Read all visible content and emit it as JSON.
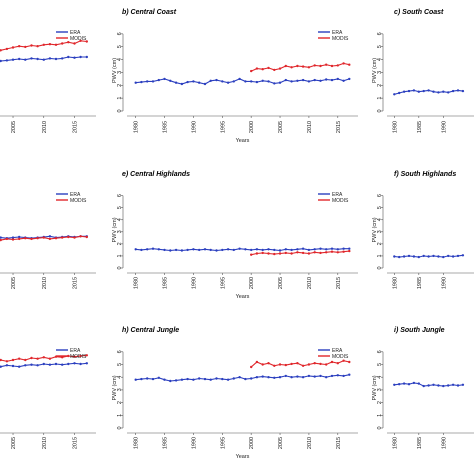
{
  "colors": {
    "era": "#2b3fbf",
    "modis": "#e0262b",
    "axis": "#555555"
  },
  "chart_data": [
    {
      "type": "line",
      "title": "",
      "xlabel": "",
      "ylabel": "",
      "x": [
        2000,
        2001,
        2002,
        2003,
        2004,
        2005,
        2006,
        2007,
        2008,
        2009,
        2010,
        2011,
        2012,
        2013,
        2014,
        2015,
        2016,
        2017
      ],
      "xticks": [
        "2005",
        "2010",
        "2015"
      ],
      "ylim": [
        0,
        6
      ],
      "legend": "top-right",
      "series": [
        {
          "name": "ERA",
          "key": "era",
          "values": [
            3.9,
            3.85,
            3.8,
            3.7,
            3.75,
            3.8,
            3.85,
            3.8,
            3.9,
            3.85,
            3.8,
            3.9,
            3.85,
            3.9,
            4.0,
            3.95,
            4.0,
            4.0
          ]
        },
        {
          "name": "MODIS",
          "key": "modis",
          "values": [
            4.7,
            4.6,
            4.55,
            4.5,
            4.6,
            4.7,
            4.8,
            4.75,
            4.85,
            4.8,
            4.9,
            4.95,
            4.9,
            5.0,
            5.1,
            5.0,
            5.2,
            5.15
          ]
        }
      ]
    },
    {
      "type": "line",
      "title": "b) Central Coast",
      "xlabel": "Years",
      "ylabel": "PWV (cm)",
      "x": [
        1980,
        1981,
        1982,
        1983,
        1984,
        1985,
        1986,
        1987,
        1988,
        1989,
        1990,
        1991,
        1992,
        1993,
        1994,
        1995,
        1996,
        1997,
        1998,
        1999,
        2000,
        2001,
        2002,
        2003,
        2004,
        2005,
        2006,
        2007,
        2008,
        2009,
        2010,
        2011,
        2012,
        2013,
        2014,
        2015,
        2016,
        2017
      ],
      "xticks": [
        "1980",
        "1985",
        "1990",
        "1995",
        "2000",
        "2005",
        "2010",
        "2015"
      ],
      "yticks": [
        "0",
        "1",
        "2",
        "3",
        "4",
        "5",
        "6"
      ],
      "ylim": [
        0,
        6.3
      ],
      "xlim": [
        1978.5,
        2018.5
      ],
      "legend": "top-right",
      "series": [
        {
          "name": "ERA",
          "key": "era",
          "values": [
            2.2,
            2.25,
            2.3,
            2.3,
            2.4,
            2.5,
            2.35,
            2.2,
            2.1,
            2.25,
            2.3,
            2.2,
            2.1,
            2.35,
            2.4,
            2.3,
            2.2,
            2.3,
            2.5,
            2.3,
            2.3,
            2.25,
            2.35,
            2.3,
            2.15,
            2.2,
            2.4,
            2.3,
            2.35,
            2.4,
            2.3,
            2.4,
            2.35,
            2.45,
            2.4,
            2.5,
            2.35,
            2.5
          ]
        },
        {
          "name": "MODIS",
          "x": [
            2000,
            2001,
            2002,
            2003,
            2004,
            2005,
            2006,
            2007,
            2008,
            2009,
            2010,
            2011,
            2012,
            2013,
            2014,
            2015,
            2016,
            2017
          ],
          "key": "modis",
          "values": [
            3.1,
            3.3,
            3.25,
            3.35,
            3.2,
            3.3,
            3.5,
            3.4,
            3.5,
            3.45,
            3.4,
            3.55,
            3.5,
            3.6,
            3.5,
            3.55,
            3.7,
            3.6
          ]
        }
      ]
    },
    {
      "type": "line",
      "title": "c) South Coast",
      "xlabel": "",
      "ylabel": "PWV (cm)",
      "x": [
        1980,
        1981,
        1982,
        1983,
        1984,
        1985,
        1986,
        1987,
        1988,
        1989,
        1990,
        1991,
        1992,
        1993,
        1994
      ],
      "xticks": [
        "1980",
        "1985",
        "1990"
      ],
      "yticks": [
        "0",
        "1",
        "2",
        "3",
        "4",
        "5",
        "6"
      ],
      "ylim": [
        0,
        6.3
      ],
      "series": [
        {
          "name": "ERA",
          "key": "era",
          "values": [
            1.3,
            1.4,
            1.5,
            1.55,
            1.6,
            1.5,
            1.55,
            1.6,
            1.5,
            1.45,
            1.5,
            1.45,
            1.55,
            1.6,
            1.55
          ]
        }
      ]
    },
    {
      "type": "line",
      "title": "",
      "xlabel": "",
      "ylabel": "",
      "x": [
        2000,
        2001,
        2002,
        2003,
        2004,
        2005,
        2006,
        2007,
        2008,
        2009,
        2010,
        2011,
        2012,
        2013,
        2014,
        2015,
        2016,
        2017
      ],
      "xticks": [
        "2005",
        "2010",
        "2015"
      ],
      "ylim": [
        0,
        6
      ],
      "legend": "top-right",
      "series": [
        {
          "name": "ERA",
          "key": "era",
          "values": [
            2.4,
            2.35,
            2.3,
            2.4,
            2.35,
            2.4,
            2.45,
            2.4,
            2.35,
            2.4,
            2.45,
            2.5,
            2.4,
            2.45,
            2.5,
            2.45,
            2.5,
            2.5
          ]
        },
        {
          "name": "MODIS",
          "key": "modis",
          "values": [
            2.3,
            2.2,
            2.25,
            2.2,
            2.3,
            2.25,
            2.3,
            2.35,
            2.3,
            2.35,
            2.4,
            2.3,
            2.35,
            2.4,
            2.45,
            2.4,
            2.5,
            2.45
          ]
        }
      ]
    },
    {
      "type": "line",
      "title": "e) Central Highlands",
      "xlabel": "Years",
      "ylabel": "PWV (cm)",
      "x": [
        1980,
        1981,
        1982,
        1983,
        1984,
        1985,
        1986,
        1987,
        1988,
        1989,
        1990,
        1991,
        1992,
        1993,
        1994,
        1995,
        1996,
        1997,
        1998,
        1999,
        2000,
        2001,
        2002,
        2003,
        2004,
        2005,
        2006,
        2007,
        2008,
        2009,
        2010,
        2011,
        2012,
        2013,
        2014,
        2015,
        2016,
        2017
      ],
      "xticks": [
        "1980",
        "1985",
        "1990",
        "1995",
        "2000",
        "2005",
        "2010",
        "2015"
      ],
      "yticks": [
        "0",
        "1",
        "2",
        "3",
        "4",
        "5",
        "6"
      ],
      "ylim": [
        0,
        6.3
      ],
      "xlim": [
        1978.5,
        2018.5
      ],
      "legend": "top-right",
      "series": [
        {
          "name": "ERA",
          "key": "era",
          "values": [
            1.55,
            1.5,
            1.55,
            1.6,
            1.55,
            1.5,
            1.45,
            1.5,
            1.45,
            1.5,
            1.55,
            1.5,
            1.55,
            1.5,
            1.45,
            1.5,
            1.55,
            1.5,
            1.6,
            1.55,
            1.5,
            1.55,
            1.5,
            1.55,
            1.5,
            1.45,
            1.55,
            1.5,
            1.55,
            1.6,
            1.5,
            1.55,
            1.6,
            1.55,
            1.6,
            1.55,
            1.6,
            1.6
          ]
        },
        {
          "name": "MODIS",
          "x": [
            2000,
            2001,
            2002,
            2003,
            2004,
            2005,
            2006,
            2007,
            2008,
            2009,
            2010,
            2011,
            2012,
            2013,
            2014,
            2015,
            2016,
            2017
          ],
          "key": "modis",
          "values": [
            1.1,
            1.2,
            1.25,
            1.2,
            1.15,
            1.2,
            1.25,
            1.2,
            1.3,
            1.25,
            1.2,
            1.3,
            1.25,
            1.3,
            1.35,
            1.3,
            1.35,
            1.4
          ]
        }
      ]
    },
    {
      "type": "line",
      "title": "f) South Highlands",
      "xlabel": "",
      "ylabel": "PWV (cm)",
      "x": [
        1980,
        1981,
        1982,
        1983,
        1984,
        1985,
        1986,
        1987,
        1988,
        1989,
        1990,
        1991,
        1992,
        1993,
        1994
      ],
      "xticks": [
        "1980",
        "1985",
        "1990"
      ],
      "yticks": [
        "0",
        "1",
        "2",
        "3",
        "4",
        "5",
        "6"
      ],
      "ylim": [
        0,
        6.3
      ],
      "series": [
        {
          "name": "ERA",
          "key": "era",
          "values": [
            0.95,
            0.9,
            0.95,
            1.0,
            0.95,
            0.9,
            1.0,
            0.95,
            1.0,
            0.95,
            0.9,
            1.0,
            0.95,
            1.0,
            1.05
          ]
        }
      ]
    },
    {
      "type": "line",
      "title": "",
      "xlabel": "",
      "ylabel": "",
      "x": [
        2000,
        2001,
        2002,
        2003,
        2004,
        2005,
        2006,
        2007,
        2008,
        2009,
        2010,
        2011,
        2012,
        2013,
        2014,
        2015,
        2016,
        2017
      ],
      "xticks": [
        "2005",
        "2010",
        "2015"
      ],
      "ylim": [
        0,
        6
      ],
      "legend": "top-right",
      "series": [
        {
          "name": "ERA",
          "key": "era",
          "values": [
            4.7,
            4.6,
            4.65,
            4.6,
            4.7,
            4.65,
            4.6,
            4.7,
            4.75,
            4.7,
            4.8,
            4.75,
            4.8,
            4.75,
            4.8,
            4.85,
            4.8,
            4.85
          ]
        },
        {
          "name": "MODIS",
          "key": "modis",
          "values": [
            5.1,
            5.0,
            5.05,
            5.1,
            5.0,
            5.1,
            5.2,
            5.1,
            5.25,
            5.2,
            5.3,
            5.2,
            5.35,
            5.3,
            5.4,
            5.35,
            5.4,
            5.45
          ]
        }
      ]
    },
    {
      "type": "line",
      "title": "h) Central Jungle",
      "xlabel": "Years",
      "ylabel": "PWV (cm)",
      "x": [
        1980,
        1981,
        1982,
        1983,
        1984,
        1985,
        1986,
        1987,
        1988,
        1989,
        1990,
        1991,
        1992,
        1993,
        1994,
        1995,
        1996,
        1997,
        1998,
        1999,
        2000,
        2001,
        2002,
        2003,
        2004,
        2005,
        2006,
        2007,
        2008,
        2009,
        2010,
        2011,
        2012,
        2013,
        2014,
        2015,
        2016,
        2017
      ],
      "xticks": [
        "1980",
        "1985",
        "1990",
        "1995",
        "2000",
        "2005",
        "2010",
        "2015"
      ],
      "yticks": [
        "0",
        "1",
        "2",
        "3",
        "4",
        "5",
        "6"
      ],
      "ylim": [
        0,
        6.3
      ],
      "xlim": [
        1978.5,
        2018.5
      ],
      "legend": "top-right",
      "series": [
        {
          "name": "ERA",
          "key": "era",
          "values": [
            3.8,
            3.85,
            3.9,
            3.85,
            3.95,
            3.8,
            3.7,
            3.75,
            3.8,
            3.85,
            3.8,
            3.9,
            3.85,
            3.8,
            3.9,
            3.85,
            3.8,
            3.9,
            4.0,
            3.85,
            3.9,
            4.0,
            4.05,
            4.0,
            3.95,
            4.0,
            4.1,
            4.0,
            4.05,
            4.0,
            4.1,
            4.05,
            4.1,
            4.0,
            4.1,
            4.15,
            4.1,
            4.2
          ]
        },
        {
          "name": "MODIS",
          "x": [
            2000,
            2001,
            2002,
            2003,
            2004,
            2005,
            2006,
            2007,
            2008,
            2009,
            2010,
            2011,
            2012,
            2013,
            2014,
            2015,
            2016,
            2017
          ],
          "key": "modis",
          "values": [
            4.8,
            5.2,
            5.0,
            5.1,
            4.9,
            5.0,
            4.95,
            5.05,
            5.1,
            4.9,
            5.0,
            5.1,
            5.05,
            5.0,
            5.2,
            5.1,
            5.3,
            5.2
          ]
        }
      ]
    },
    {
      "type": "line",
      "title": "i) South Jungle",
      "xlabel": "",
      "ylabel": "PWV (cm)",
      "x": [
        1980,
        1981,
        1982,
        1983,
        1984,
        1985,
        1986,
        1987,
        1988,
        1989,
        1990,
        1991,
        1992,
        1993,
        1994
      ],
      "xticks": [
        "1980",
        "1985",
        "1990"
      ],
      "yticks": [
        "0",
        "1",
        "2",
        "3",
        "4",
        "5",
        "6"
      ],
      "ylim": [
        0,
        6.3
      ],
      "series": [
        {
          "name": "ERA",
          "key": "era",
          "values": [
            3.4,
            3.45,
            3.5,
            3.45,
            3.55,
            3.5,
            3.3,
            3.35,
            3.4,
            3.35,
            3.3,
            3.35,
            3.4,
            3.35,
            3.4
          ]
        }
      ]
    }
  ]
}
